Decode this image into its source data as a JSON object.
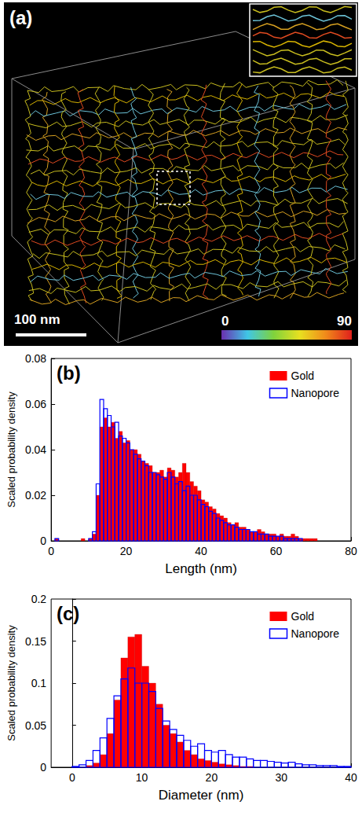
{
  "panel_a": {
    "label": "(a)",
    "scale_bar": "100 nm",
    "colorbar": {
      "min": 0,
      "max": 90,
      "ticks": [
        0,
        90
      ]
    }
  },
  "chart_data": [
    {
      "type": "histogram",
      "title": "(b)",
      "xlabel": "Length (nm)",
      "ylabel": "Scaled probability density",
      "xlim": [
        0,
        80
      ],
      "xticks": [
        0,
        20,
        40,
        60,
        80
      ],
      "ylim": [
        0,
        0.08
      ],
      "yticks": [
        0,
        0.02,
        0.04,
        0.06,
        0.08
      ],
      "grid": false,
      "legend": "upper right",
      "bins": [
        0,
        1,
        2,
        3,
        4,
        5,
        6,
        7,
        8,
        9,
        10,
        11,
        12,
        13,
        14,
        15,
        16,
        17,
        18,
        19,
        20,
        21,
        22,
        23,
        24,
        25,
        26,
        27,
        28,
        29,
        30,
        31,
        32,
        33,
        34,
        35,
        36,
        37,
        38,
        39,
        40,
        41,
        42,
        43,
        44,
        45,
        46,
        47,
        48,
        49,
        50,
        51,
        52,
        53,
        54,
        55,
        56,
        57,
        58,
        59,
        60,
        61,
        62,
        63,
        64,
        65,
        66,
        67,
        68,
        69,
        70,
        71,
        72,
        73,
        74,
        75,
        76,
        77,
        78,
        79,
        80
      ],
      "series": [
        {
          "name": "Gold",
          "color": "#ff0000",
          "marker": "filled",
          "values": [
            0,
            0.001,
            0,
            0,
            0,
            0,
            0,
            0,
            0.001,
            0,
            0.001,
            0.003,
            0.02,
            0.05,
            0.054,
            0.05,
            0.052,
            0.045,
            0.048,
            0.043,
            0.044,
            0.04,
            0.04,
            0.038,
            0.035,
            0.034,
            0.033,
            0.03,
            0.03,
            0.031,
            0.028,
            0.032,
            0.031,
            0.028,
            0.03,
            0.034,
            0.03,
            0.026,
            0.024,
            0.022,
            0.018,
            0.017,
            0.015,
            0.014,
            0.012,
            0.011,
            0.01,
            0.008,
            0.007,
            0.008,
            0.006,
            0.006,
            0.005,
            0.004,
            0.004,
            0.005,
            0.004,
            0.003,
            0.003,
            0.003,
            0.002,
            0.003,
            0.002,
            0.002,
            0.003,
            0.002,
            0.001,
            0.001,
            0.001,
            0.001,
            0.001,
            0,
            0,
            0,
            0,
            0,
            0,
            0,
            0,
            0
          ]
        },
        {
          "name": "Nanopore",
          "color": "#0000ff",
          "marker": "open",
          "values": [
            0,
            0.001,
            0,
            0,
            0,
            0,
            0,
            0,
            0,
            0,
            0.001,
            0.004,
            0.025,
            0.062,
            0.058,
            0.055,
            0.05,
            0.052,
            0.046,
            0.045,
            0.043,
            0.04,
            0.038,
            0.036,
            0.035,
            0.033,
            0.03,
            0.03,
            0.029,
            0.028,
            0.027,
            0.03,
            0.028,
            0.025,
            0.026,
            0.022,
            0.024,
            0.02,
            0.02,
            0.018,
            0.016,
            0.015,
            0.013,
            0.012,
            0.01,
            0.009,
            0.008,
            0.007,
            0.007,
            0.006,
            0.005,
            0.005,
            0.005,
            0.004,
            0.004,
            0.003,
            0.003,
            0.003,
            0.002,
            0.002,
            0.002,
            0.002,
            0.001,
            0.001,
            0.001,
            0.001,
            0.001,
            0,
            0,
            0,
            0,
            0,
            0,
            0,
            0,
            0,
            0,
            0,
            0,
            0
          ]
        }
      ]
    },
    {
      "type": "histogram",
      "title": "(c)",
      "xlabel": "Diameter (nm)",
      "ylabel": "Scaled probability density",
      "xlim": [
        -3,
        40
      ],
      "xticks": [
        0,
        10,
        20,
        30,
        40
      ],
      "ylim": [
        0,
        0.2
      ],
      "yticks": [
        0,
        0.05,
        0.1,
        0.15,
        0.2
      ],
      "grid": false,
      "legend": "upper right",
      "bins": [
        -3,
        -2,
        -1,
        0,
        1,
        2,
        3,
        4,
        5,
        6,
        7,
        8,
        9,
        10,
        11,
        12,
        13,
        14,
        15,
        16,
        17,
        18,
        19,
        20,
        21,
        22,
        23,
        24,
        25,
        26,
        27,
        28,
        29,
        30,
        31,
        32,
        33,
        34,
        35,
        36,
        37,
        38,
        39,
        40
      ],
      "series": [
        {
          "name": "Gold",
          "color": "#ff0000",
          "marker": "filled",
          "values": [
            0,
            0,
            0,
            0,
            0,
            0.002,
            0.005,
            0.015,
            0.04,
            0.08,
            0.13,
            0.155,
            0.158,
            0.12,
            0.1,
            0.075,
            0.05,
            0.04,
            0.03,
            0.02,
            0.015,
            0.01,
            0.008,
            0.006,
            0.004,
            0.003,
            0.002,
            0.001,
            0.001,
            0,
            0,
            0,
            0,
            0,
            0,
            0,
            0,
            0,
            0,
            0,
            0,
            0,
            0
          ]
        },
        {
          "name": "Nanopore",
          "color": "#0000ff",
          "marker": "open",
          "values": [
            0,
            0,
            0,
            0.001,
            0.003,
            0.008,
            0.02,
            0.035,
            0.058,
            0.085,
            0.105,
            0.118,
            0.1,
            0.1,
            0.09,
            0.07,
            0.055,
            0.045,
            0.038,
            0.032,
            0.025,
            0.028,
            0.02,
            0.018,
            0.02,
            0.015,
            0.012,
            0.012,
            0.01,
            0.008,
            0.008,
            0.007,
            0.006,
            0.005,
            0.006,
            0.004,
            0.003,
            0.003,
            0.002,
            0.002,
            0.002,
            0.001,
            0.001
          ]
        }
      ]
    }
  ]
}
